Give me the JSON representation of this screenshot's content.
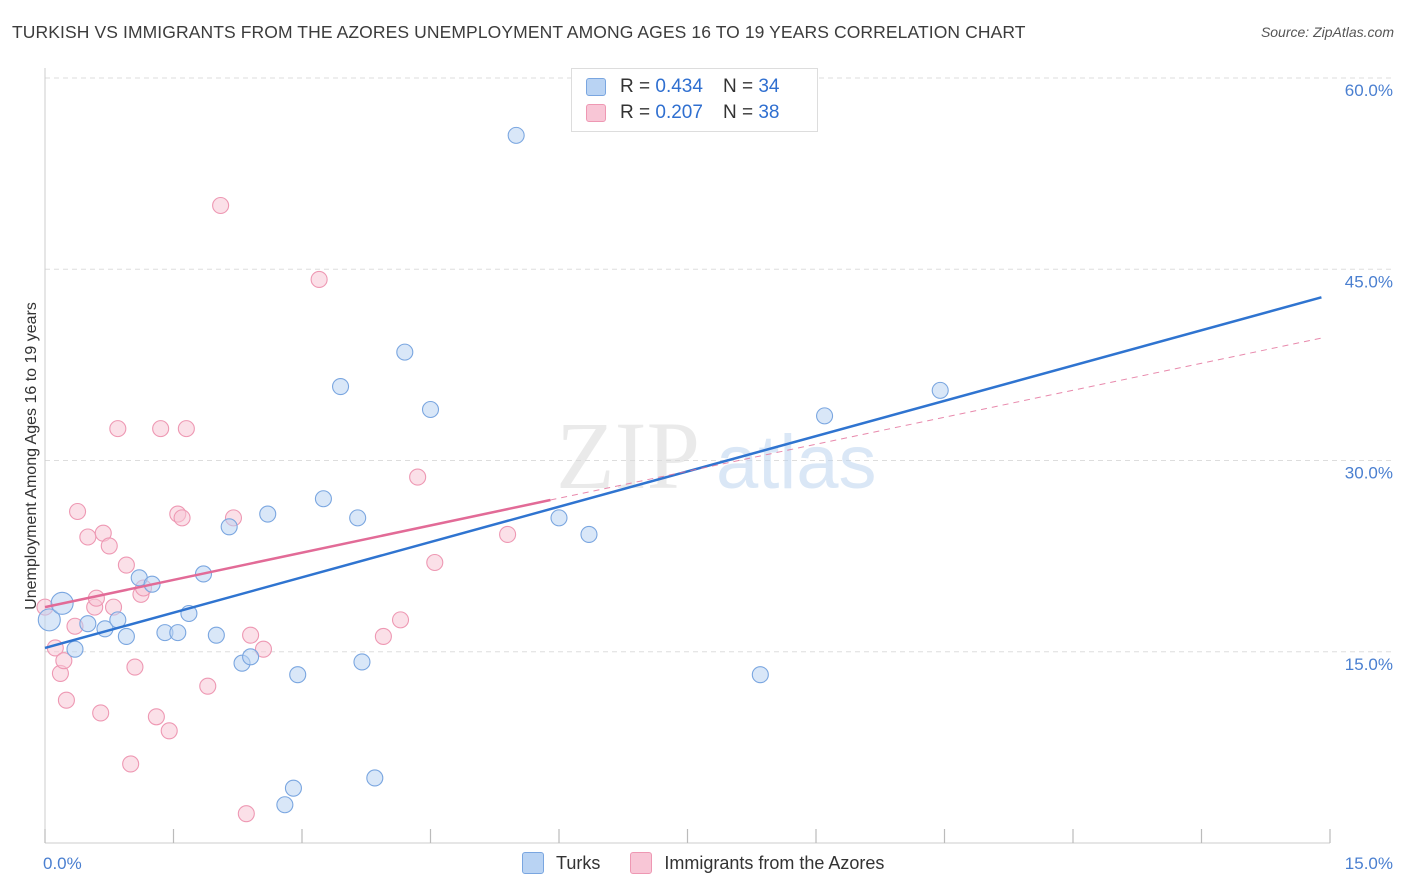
{
  "title": "TURKISH VS IMMIGRANTS FROM THE AZORES UNEMPLOYMENT AMONG AGES 16 TO 19 YEARS CORRELATION CHART",
  "source": "Source: ZipAtlas.com",
  "watermark": {
    "zip": "ZIP",
    "atlas": "atlas"
  },
  "legend": {
    "turks": {
      "r_label": "R =",
      "r_value": "0.434",
      "n_label": "N =",
      "n_value": "34"
    },
    "azores": {
      "r_label": "R =",
      "r_value": "0.207",
      "n_label": "N =",
      "n_value": "38"
    }
  },
  "bottom_legend": {
    "turks": "Turks",
    "azores": "Immigrants from the Azores"
  },
  "colors": {
    "turks_fill": "#b9d3f3",
    "turks_stroke": "#7aa6e0",
    "turks_line": "#2f74d0",
    "azores_fill": "#f8c6d6",
    "azores_stroke": "#ee98b3",
    "azores_line": "#e26b97",
    "axis_text": "#4a7fd0",
    "grid": "#dddddd"
  },
  "chart_data": {
    "type": "scatter",
    "title": "TURKISH VS IMMIGRANTS FROM THE AZORES UNEMPLOYMENT AMONG AGES 16 TO 19 YEARS CORRELATION CHART",
    "xlabel": "",
    "ylabel": "Unemployment Among Ages 16 to 19 years",
    "xlim": [
      0,
      15
    ],
    "ylim": [
      0,
      60
    ],
    "x_tick_labels": [
      "0.0%",
      "15.0%"
    ],
    "y_ticks": [
      15,
      30,
      45,
      60
    ],
    "y_tick_labels": [
      "15.0%",
      "30.0%",
      "45.0%",
      "60.0%"
    ],
    "grid": true,
    "series": [
      {
        "name": "Turks",
        "points": [
          [
            0.05,
            17.5
          ],
          [
            0.2,
            18.8
          ],
          [
            0.35,
            15.2
          ],
          [
            0.5,
            17.2
          ],
          [
            0.7,
            16.8
          ],
          [
            0.95,
            16.2
          ],
          [
            0.85,
            17.5
          ],
          [
            1.1,
            20.8
          ],
          [
            1.25,
            20.3
          ],
          [
            1.4,
            16.5
          ],
          [
            1.55,
            16.5
          ],
          [
            1.68,
            18.0
          ],
          [
            1.85,
            21.1
          ],
          [
            2.0,
            16.3
          ],
          [
            2.15,
            24.8
          ],
          [
            2.3,
            14.1
          ],
          [
            2.4,
            14.6
          ],
          [
            2.6,
            25.8
          ],
          [
            2.8,
            3.0
          ],
          [
            2.9,
            4.3
          ],
          [
            2.95,
            13.2
          ],
          [
            3.25,
            27.0
          ],
          [
            3.45,
            35.8
          ],
          [
            3.65,
            25.5
          ],
          [
            3.7,
            14.2
          ],
          [
            3.85,
            5.1
          ],
          [
            4.2,
            38.5
          ],
          [
            4.5,
            34.0
          ],
          [
            5.5,
            55.5
          ],
          [
            6.0,
            25.5
          ],
          [
            6.35,
            24.2
          ],
          [
            8.35,
            13.2
          ],
          [
            9.1,
            33.5
          ],
          [
            10.45,
            35.5
          ]
        ],
        "trendline": {
          "x": [
            0.0,
            14.9
          ],
          "y": [
            15.3,
            42.8
          ]
        }
      },
      {
        "name": "Immigrants from the Azores",
        "points": [
          [
            0.0,
            18.5
          ],
          [
            0.12,
            15.3
          ],
          [
            0.18,
            13.3
          ],
          [
            0.22,
            14.3
          ],
          [
            0.25,
            11.2
          ],
          [
            0.35,
            17.0
          ],
          [
            0.38,
            26.0
          ],
          [
            0.5,
            24.0
          ],
          [
            0.58,
            18.5
          ],
          [
            0.6,
            19.2
          ],
          [
            0.65,
            10.2
          ],
          [
            0.68,
            24.3
          ],
          [
            0.75,
            23.3
          ],
          [
            0.8,
            18.5
          ],
          [
            0.85,
            32.5
          ],
          [
            0.95,
            21.8
          ],
          [
            1.0,
            6.2
          ],
          [
            1.05,
            13.8
          ],
          [
            1.12,
            19.5
          ],
          [
            1.15,
            20.0
          ],
          [
            1.3,
            9.9
          ],
          [
            1.35,
            32.5
          ],
          [
            1.45,
            8.8
          ],
          [
            1.55,
            25.8
          ],
          [
            1.6,
            25.5
          ],
          [
            1.65,
            32.5
          ],
          [
            1.9,
            12.3
          ],
          [
            2.05,
            50.0
          ],
          [
            2.2,
            25.5
          ],
          [
            2.35,
            2.3
          ],
          [
            2.4,
            16.3
          ],
          [
            2.55,
            15.2
          ],
          [
            3.2,
            44.2
          ],
          [
            3.95,
            16.2
          ],
          [
            4.15,
            17.5
          ],
          [
            4.35,
            28.7
          ],
          [
            4.55,
            22.0
          ],
          [
            5.4,
            24.2
          ]
        ],
        "trendline": {
          "x": [
            0.0,
            5.9
          ],
          "y": [
            18.5,
            26.9
          ]
        },
        "trendline_extension": {
          "x": [
            5.9,
            14.9
          ],
          "y": [
            26.9,
            39.6
          ]
        }
      }
    ]
  }
}
